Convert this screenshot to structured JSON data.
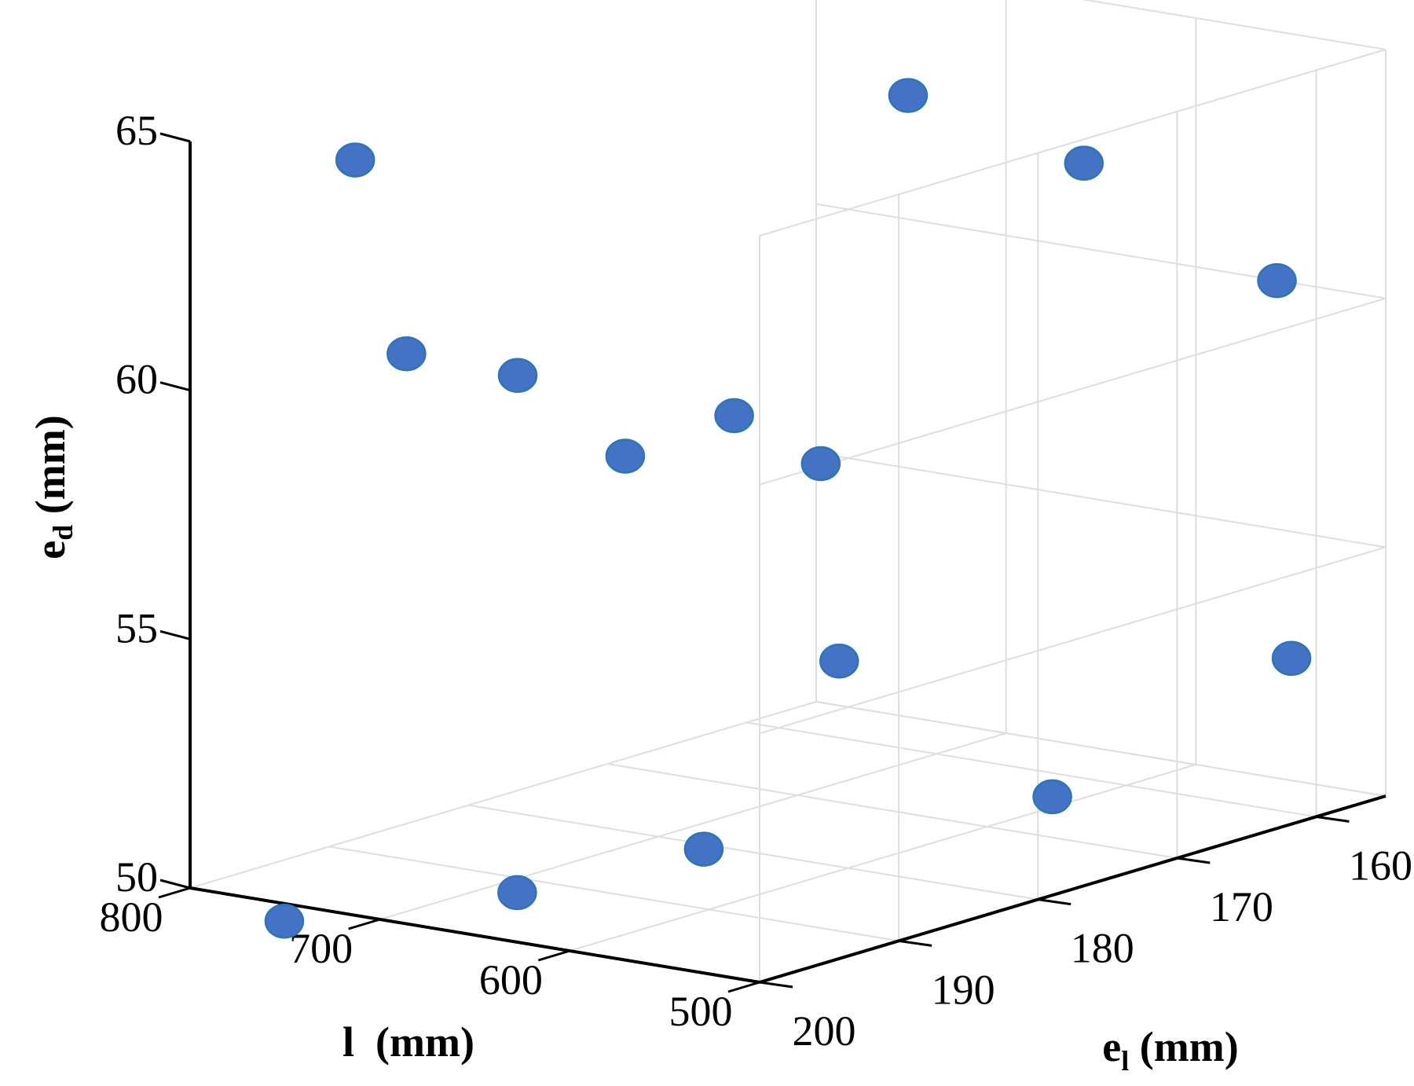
{
  "chart_data": {
    "type": "scatter",
    "dimensions": 3,
    "title": "",
    "xlabel": "l  (mm)",
    "ylabel": {
      "base": "e",
      "sub": "l",
      "suffix": " (mm)"
    },
    "zlabel": {
      "base": "e",
      "sub": "d",
      "suffix": " (mm)"
    },
    "xlim": [
      500,
      800
    ],
    "ylim": [
      155,
      200
    ],
    "zlim": [
      50,
      65
    ],
    "x_ticks": [
      800,
      700,
      600,
      500
    ],
    "y_ticks": [
      200,
      190,
      180,
      170,
      160
    ],
    "z_ticks": [
      65,
      60,
      55,
      50
    ],
    "grid": true,
    "marker_color": "#4472c4",
    "points": [
      {
        "x": 637,
        "y": 158,
        "z": 62.1
      },
      {
        "x": 757,
        "y": 194,
        "z": 64.4
      },
      {
        "x": 649,
        "y": 169,
        "z": 64.3
      },
      {
        "x": 506,
        "y": 162,
        "z": 60.9
      },
      {
        "x": 774,
        "y": 188,
        "z": 59.9
      },
      {
        "x": 638,
        "y": 183,
        "z": 59.1
      },
      {
        "x": 774,
        "y": 180,
        "z": 58.8
      },
      {
        "x": 776,
        "y": 172,
        "z": 56.5
      },
      {
        "x": 673,
        "y": 172,
        "z": 57.0
      },
      {
        "x": 612,
        "y": 179,
        "z": 54.0
      },
      {
        "x": 513,
        "y": 160,
        "z": 53.1
      },
      {
        "x": 595,
        "y": 166,
        "z": 50.3
      },
      {
        "x": 676,
        "y": 180,
        "z": 49.9
      },
      {
        "x": 701,
        "y": 190,
        "z": 49.7
      },
      {
        "x": 787,
        "y": 195,
        "z": 49.0
      }
    ]
  }
}
